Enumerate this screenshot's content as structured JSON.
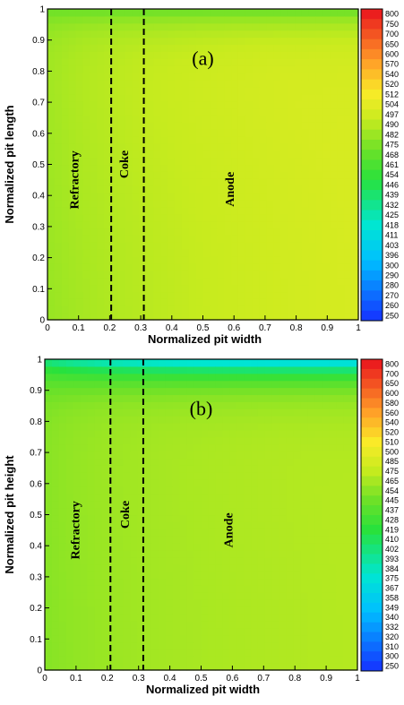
{
  "chart_data": [
    {
      "type": "heatmap",
      "panel_label": "(a)",
      "xlabel": "Normalized pit width",
      "ylabel": "Normalized pit length",
      "xlim": [
        0,
        1
      ],
      "ylim": [
        0,
        1
      ],
      "x_ticks": [
        "0",
        "0.1",
        "0.2",
        "0.3",
        "0.4",
        "0.5",
        "0.6",
        "0.7",
        "0.8",
        "0.9",
        "1"
      ],
      "y_ticks": [
        "0",
        "0.1",
        "0.2",
        "0.3",
        "0.4",
        "0.5",
        "0.6",
        "0.7",
        "0.8",
        "0.9",
        "1"
      ],
      "boundaries": [
        0.205,
        0.31
      ],
      "regions": [
        {
          "label": "Refractory",
          "x": 0.1,
          "y": 0.45
        },
        {
          "label": "Coke",
          "x": 0.26,
          "y": 0.5
        },
        {
          "label": "Anode",
          "x": 0.6,
          "y": 0.42
        }
      ],
      "colorbar_levels": [
        "800",
        "750",
        "700",
        "650",
        "600",
        "570",
        "540",
        "520",
        "512",
        "504",
        "497",
        "490",
        "482",
        "475",
        "468",
        "461",
        "454",
        "446",
        "439",
        "432",
        "425",
        "418",
        "411",
        "403",
        "396",
        "300",
        "290",
        "280",
        "270",
        "260",
        "250"
      ],
      "field": {
        "bottom_level": 490,
        "top_level": 465,
        "left_level": 472,
        "right_level": 499
      }
    },
    {
      "type": "heatmap",
      "panel_label": "(b)",
      "xlabel": "Normalized pit width",
      "ylabel": "Normalized pit height",
      "xlim": [
        0,
        1
      ],
      "ylim": [
        0,
        1
      ],
      "x_ticks": [
        "0",
        "0.1",
        "0.2",
        "0.3",
        "0.4",
        "0.5",
        "0.6",
        "0.7",
        "0.8",
        "0.9",
        "1"
      ],
      "y_ticks": [
        "0",
        "0.1",
        "0.2",
        "0.3",
        "0.4",
        "0.5",
        "0.6",
        "0.7",
        "0.8",
        "0.9",
        "1"
      ],
      "boundaries": [
        0.21,
        0.315
      ],
      "regions": [
        {
          "label": "Refractory",
          "x": 0.11,
          "y": 0.45
        },
        {
          "label": "Coke",
          "x": 0.27,
          "y": 0.5
        },
        {
          "label": "Anode",
          "x": 0.6,
          "y": 0.45
        }
      ],
      "colorbar_levels": [
        "800",
        "700",
        "650",
        "600",
        "580",
        "560",
        "540",
        "520",
        "510",
        "500",
        "485",
        "475",
        "465",
        "454",
        "445",
        "437",
        "428",
        "419",
        "410",
        "402",
        "393",
        "384",
        "375",
        "367",
        "358",
        "349",
        "340",
        "332",
        "320",
        "310",
        "300",
        "250"
      ],
      "field": {
        "bottom_level": 465,
        "top_level": 340,
        "left_level": 440,
        "right_level": 470
      }
    }
  ]
}
